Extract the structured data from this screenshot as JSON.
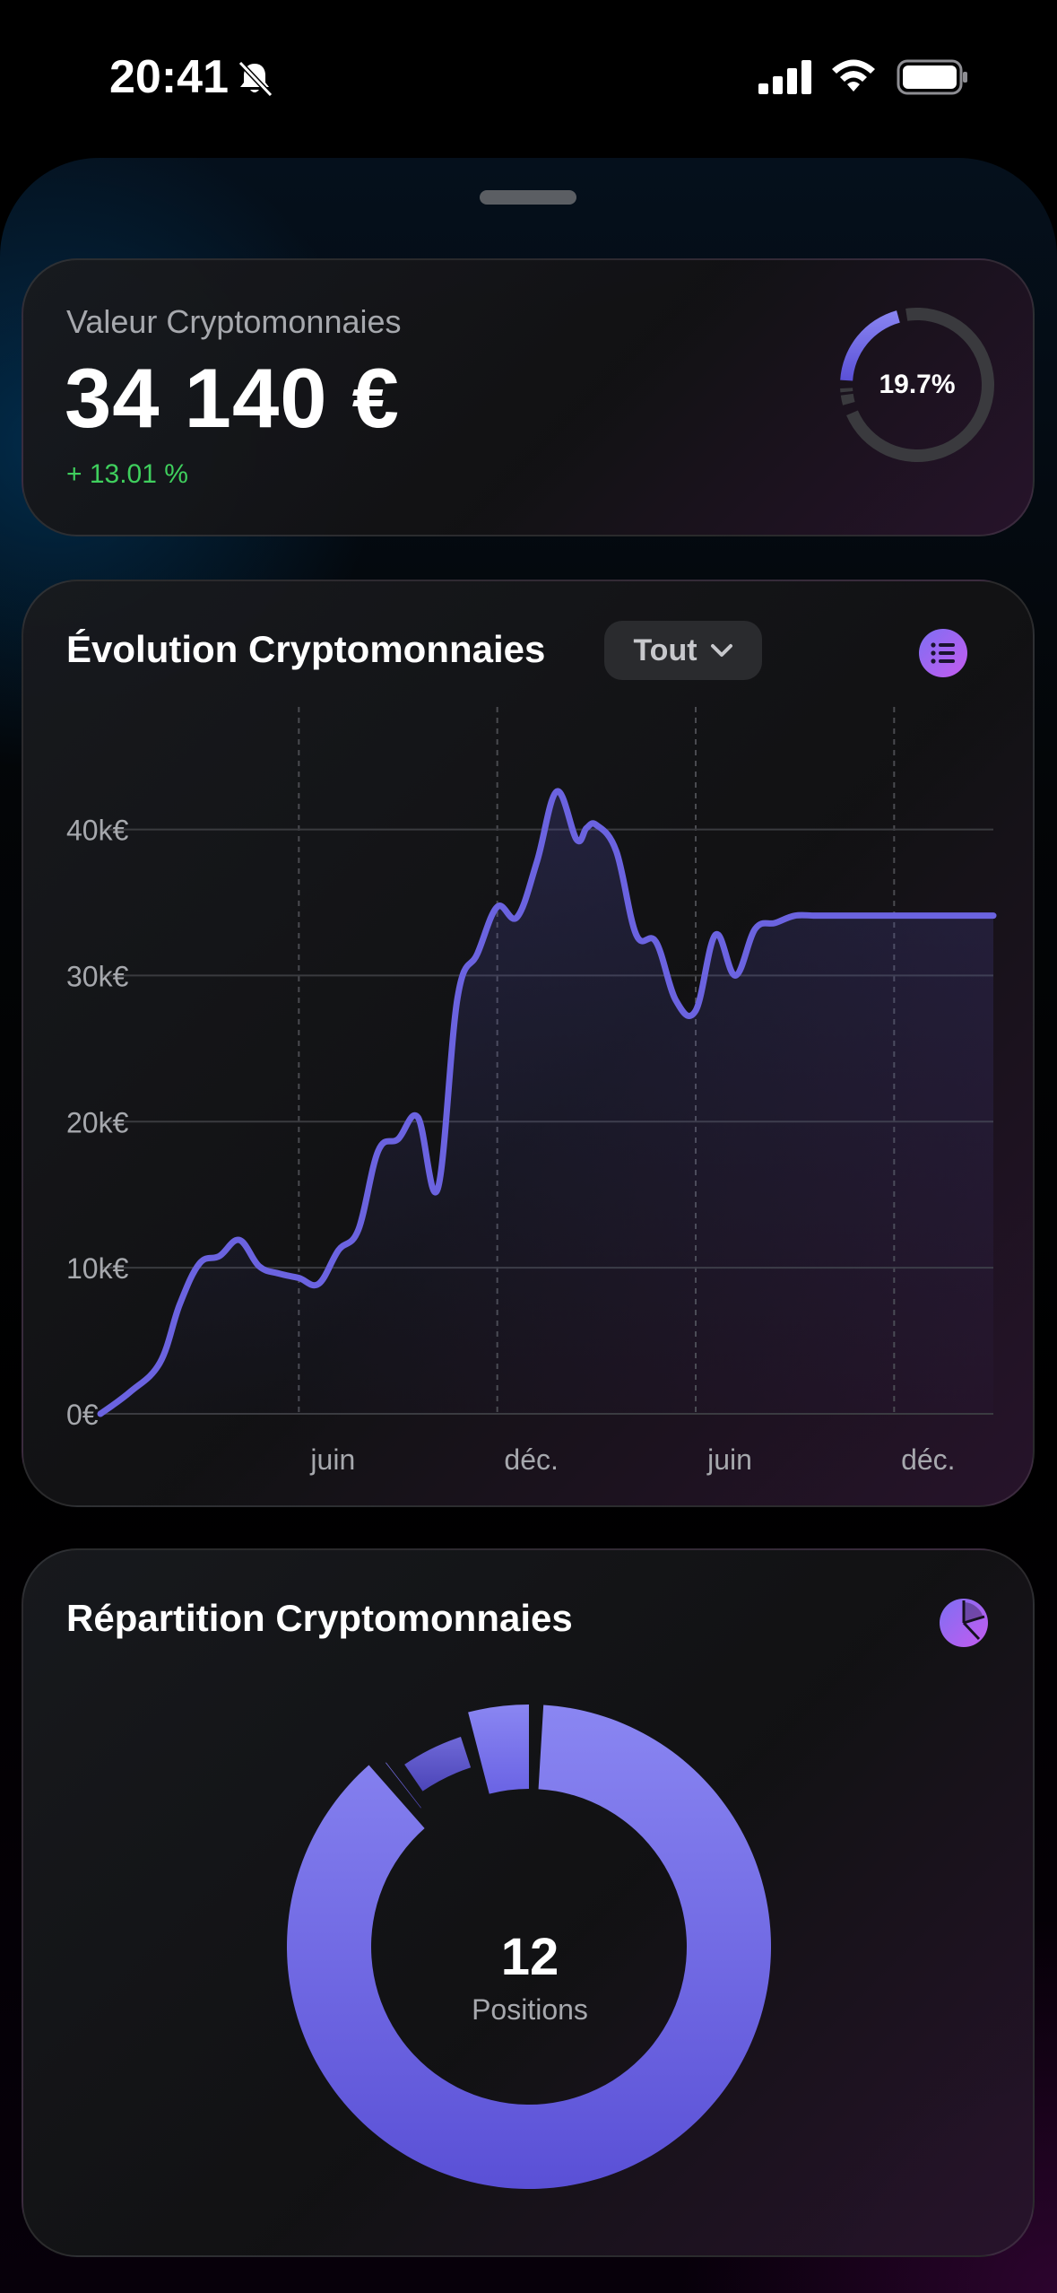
{
  "status_bar": {
    "time": "20:41"
  },
  "value_card": {
    "label": "Valeur Cryptomonnaies",
    "amount": "34 140 €",
    "change": "+ 13.01 %",
    "share_label": "19.7%",
    "share_value": 19.7
  },
  "evolution_card": {
    "title": "Évolution Cryptomonnaies",
    "filter_label": "Tout"
  },
  "chart_data": {
    "type": "area",
    "y_tick_labels": [
      "0€",
      "10k€",
      "20k€",
      "30k€",
      "40k€"
    ],
    "y_ticks": [
      0,
      10000,
      20000,
      30000,
      40000
    ],
    "ylim": [
      0,
      49000
    ],
    "x_tick_labels": [
      "juin",
      "déc.",
      "juin",
      "déc."
    ],
    "x_tick_positions": [
      0.2,
      0.4,
      0.6,
      0.8
    ],
    "xlim": [
      0,
      0.9
    ],
    "grid": true,
    "series": [
      {
        "x": [
          0.0,
          0.03,
          0.06,
          0.08,
          0.1,
          0.12,
          0.14,
          0.16,
          0.18,
          0.2,
          0.22,
          0.24,
          0.26,
          0.28,
          0.3,
          0.32,
          0.34,
          0.36,
          0.38,
          0.4,
          0.42,
          0.44,
          0.46,
          0.48,
          0.49,
          0.5,
          0.52,
          0.54,
          0.56,
          0.58,
          0.6,
          0.62,
          0.64,
          0.66,
          0.68,
          0.7,
          0.72,
          0.74,
          0.76,
          0.78,
          0.8,
          0.82,
          0.84,
          0.86,
          0.88,
          0.9
        ],
        "values": [
          0,
          1500,
          3500,
          7500,
          10300,
          10800,
          11900,
          10100,
          9600,
          9300,
          8900,
          11200,
          12600,
          18000,
          18800,
          20300,
          15400,
          28500,
          31500,
          34700,
          34000,
          37800,
          42600,
          39300,
          40100,
          40300,
          38500,
          32800,
          32300,
          28300,
          27600,
          32800,
          30000,
          33200,
          33600,
          34100,
          34100,
          34100,
          34100,
          34100,
          34100,
          34100,
          34100,
          34100,
          34100,
          34100
        ]
      }
    ]
  },
  "repartition_card": {
    "title": "Répartition Cryptomonnaies",
    "center_value": "12",
    "center_label": "Positions",
    "segments": [
      {
        "value": 88.5,
        "color_top": "#8a86f2",
        "color_bottom": "#5a50d6"
      },
      {
        "value": 1.0,
        "color_top": "#7c74e8",
        "color_bottom": "#5a50d6"
      },
      {
        "value": 5.5,
        "color_top": "#6f69d8",
        "color_bottom": "#4c45b8"
      },
      {
        "value": 5.0,
        "color_top": "#8a86f2",
        "color_bottom": "#6a63e4"
      }
    ]
  },
  "colors": {
    "accent": "#6b63e0",
    "positive": "#3fcf5d",
    "muted_text": "#a6a8ad"
  }
}
